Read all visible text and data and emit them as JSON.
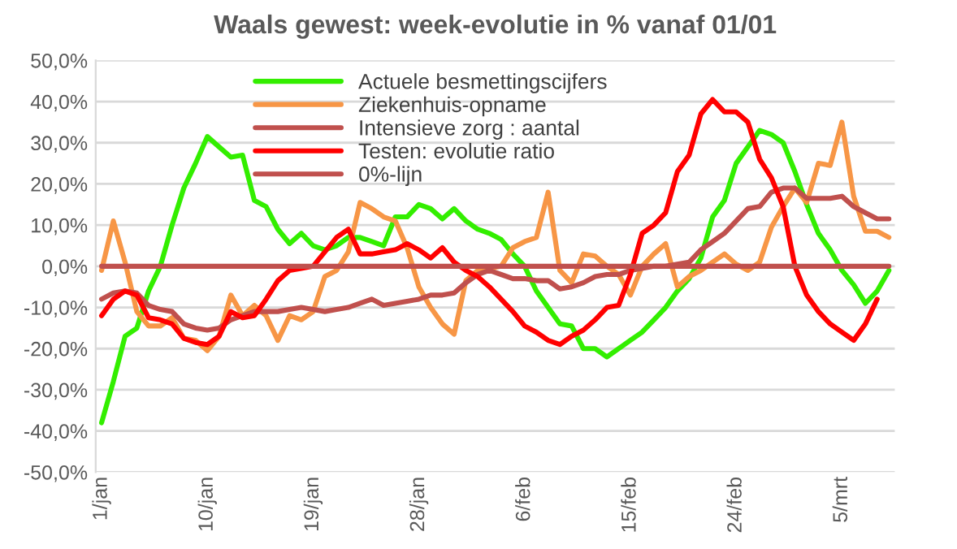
{
  "chart_data": {
    "type": "line",
    "title": "Waals gewest: week-evolutie in % vanaf 01/01",
    "categories": [
      "1/jan",
      null,
      null,
      null,
      null,
      null,
      null,
      null,
      null,
      "10/jan",
      null,
      null,
      null,
      null,
      null,
      null,
      null,
      null,
      "19/jan",
      null,
      null,
      null,
      null,
      null,
      null,
      null,
      null,
      "28/jan",
      null,
      null,
      null,
      null,
      null,
      null,
      null,
      null,
      "6/feb",
      null,
      null,
      null,
      null,
      null,
      null,
      null,
      null,
      "15/feb",
      null,
      null,
      null,
      null,
      null,
      null,
      null,
      null,
      "24/feb",
      null,
      null,
      null,
      null,
      null,
      null,
      null,
      null,
      "5/mrt",
      null,
      null,
      null,
      null
    ],
    "series": [
      {
        "name": "Actuele besmettingscijfers",
        "color": "#33ee00",
        "values": [
          -38,
          -28,
          -17,
          -15,
          -6,
          0,
          10,
          19,
          25,
          31.5,
          29,
          26.5,
          27,
          16,
          14.5,
          9,
          5.5,
          8,
          5,
          4,
          5,
          7,
          7,
          6,
          5,
          12,
          12,
          15,
          14,
          11.5,
          14,
          11,
          9,
          8,
          6.5,
          3,
          0,
          -6,
          -10,
          -14,
          -14.5,
          -20,
          -20,
          -22,
          -20,
          -18,
          -16,
          -13,
          -10,
          -6,
          -3,
          2,
          12,
          16,
          25,
          29,
          33,
          32,
          30,
          23,
          15,
          8,
          4,
          -1,
          -4.5,
          -9,
          -6,
          -1
        ]
      },
      {
        "name": "Ziekenhuis-opname",
        "color": "#f79646",
        "values": [
          -1,
          11,
          1,
          -11,
          -14.5,
          -14.5,
          -12.5,
          -17.5,
          -18,
          -20.5,
          -17,
          -7,
          -12,
          -9.5,
          -12,
          -18,
          -12,
          -13,
          -11,
          -2.5,
          -1,
          3.5,
          15.5,
          14,
          12,
          11,
          4.5,
          -5,
          -10,
          -14,
          -16.5,
          -3.5,
          -1,
          -0.5,
          0,
          4.5,
          6,
          7,
          18,
          -1,
          -4,
          3,
          2.5,
          0,
          -2,
          -7,
          0,
          3,
          5.5,
          -5,
          -2.5,
          -1,
          1,
          3,
          0.5,
          -1,
          1,
          9.5,
          14.5,
          19,
          15.5,
          25,
          24.5,
          35,
          17,
          8.5,
          8.5,
          7
        ]
      },
      {
        "name": "Intensieve zorg : aantal",
        "color": "#c0504d",
        "values": [
          -8,
          -6.5,
          -6,
          -6.5,
          -9.5,
          -10.5,
          -11,
          -14,
          -15,
          -15.5,
          -15,
          -13,
          -12,
          -11,
          -11,
          -11,
          -10.5,
          -10,
          -10.5,
          -11,
          -10.5,
          -10,
          -9,
          -8,
          -9.5,
          -9,
          -8.5,
          -8,
          -7,
          -7,
          -6.5,
          -4,
          -2,
          -1,
          -2,
          -3,
          -3,
          -3.5,
          -3.5,
          -5.5,
          -5,
          -4,
          -2.5,
          -2,
          -2,
          -1,
          -0.5,
          0,
          0,
          0.5,
          1,
          4,
          6,
          8,
          11,
          14,
          14.5,
          18,
          19,
          19,
          16.5,
          16.5,
          16.5,
          17,
          14.5,
          13,
          11.5,
          11.5
        ]
      },
      {
        "name": "Testen: evolutie ratio",
        "color": "#ff0000",
        "values": [
          -12,
          -8,
          -6,
          -7,
          -12.5,
          -13,
          -14,
          -17.5,
          -18.5,
          -19,
          -17,
          -11,
          -12.5,
          -12,
          -8,
          -3.5,
          -1,
          -0.5,
          0,
          3.5,
          7,
          9,
          3,
          3,
          3.5,
          4,
          5.5,
          4,
          2,
          4.5,
          1,
          -1,
          -2.5,
          -5,
          -8,
          -11,
          -14.5,
          -16,
          -18,
          -19,
          -17,
          -15.5,
          -13,
          -10,
          -9.5,
          -2,
          8,
          10,
          13,
          23,
          27,
          37,
          40.5,
          37.5,
          37.5,
          35,
          26,
          21.5,
          14.5,
          0,
          -7,
          -11,
          -14,
          -16,
          -18,
          -14,
          -8,
          null
        ]
      },
      {
        "name": "0%-lijn",
        "color": "#c0504d",
        "values": [
          0,
          0,
          0,
          0,
          0,
          0,
          0,
          0,
          0,
          0,
          0,
          0,
          0,
          0,
          0,
          0,
          0,
          0,
          0,
          0,
          0,
          0,
          0,
          0,
          0,
          0,
          0,
          0,
          0,
          0,
          0,
          0,
          0,
          0,
          0,
          0,
          0,
          0,
          0,
          0,
          0,
          0,
          0,
          0,
          0,
          0,
          0,
          0,
          0,
          0,
          0,
          0,
          0,
          0,
          0,
          0,
          0,
          0,
          0,
          0,
          0,
          0,
          0,
          0,
          0,
          0,
          0,
          0
        ]
      }
    ],
    "ylim": [
      -50,
      50
    ],
    "yticks": [
      {
        "value": -50,
        "label": "-50,0%"
      },
      {
        "value": -40,
        "label": "-40,0%"
      },
      {
        "value": -30,
        "label": "-30,0%"
      },
      {
        "value": -20,
        "label": "-20,0%"
      },
      {
        "value": -10,
        "label": "-10,0%"
      },
      {
        "value": 0,
        "label": "0,0%"
      },
      {
        "value": 10,
        "label": "10,0%"
      },
      {
        "value": 20,
        "label": "20,0%"
      },
      {
        "value": 30,
        "label": "30,0%"
      },
      {
        "value": 40,
        "label": "40,0%"
      },
      {
        "value": 50,
        "label": "50,0%"
      }
    ],
    "grid": "y",
    "legend": "top",
    "marker": "none",
    "line_style": "solid"
  }
}
